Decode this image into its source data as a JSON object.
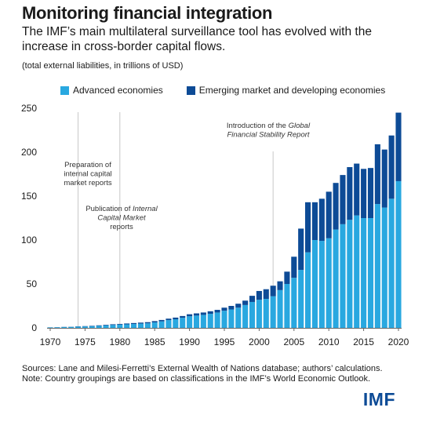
{
  "title": "Monitoring financial integration",
  "subtitle": "The IMF’s main multilateral surveillance tool has evolved with the increase in cross-border capital flows.",
  "units_note": "(total external liabilities, in trillions of USD)",
  "footer": {
    "sources": "Sources: Lane and Milesi-Ferretti’s External Wealth of Nations database; authors’ calculations.",
    "note": "Note: Country groupings are based on classifications in the IMF’s World Economic Outlook."
  },
  "logo_text": "IMF",
  "colors": {
    "advanced": "#29a8e0",
    "emerging": "#0d4b96",
    "grid": "#c8c8c8"
  },
  "chart_data": {
    "type": "bar",
    "stacked": true,
    "x": [
      1970,
      1971,
      1972,
      1973,
      1974,
      1975,
      1976,
      1977,
      1978,
      1979,
      1980,
      1981,
      1982,
      1983,
      1984,
      1985,
      1986,
      1987,
      1988,
      1989,
      1990,
      1991,
      1992,
      1993,
      1994,
      1995,
      1996,
      1997,
      1998,
      1999,
      2000,
      2001,
      2002,
      2003,
      2004,
      2005,
      2006,
      2007,
      2008,
      2009,
      2010,
      2011,
      2012,
      2013,
      2014,
      2015,
      2016,
      2017,
      2018,
      2019,
      2020
    ],
    "series": [
      {
        "name": "Advanced economies",
        "values": [
          0.5,
          0.7,
          0.9,
          1.1,
          1.4,
          1.6,
          1.9,
          2.3,
          2.8,
          3.3,
          3.7,
          4.0,
          4.4,
          4.8,
          5.2,
          6.2,
          7.4,
          8.8,
          9.8,
          11.5,
          13.2,
          14.0,
          14.8,
          16.0,
          17.5,
          19.5,
          21.0,
          23.0,
          26.0,
          29.5,
          32.0,
          33.0,
          36.0,
          43.0,
          50.0,
          57.0,
          66.0,
          86.0,
          100.0,
          99.0,
          102.0,
          112.0,
          118.0,
          123.0,
          128.0,
          125.0,
          125.0,
          141.0,
          137.0,
          147.0,
          167.0
        ]
      },
      {
        "name": "Emerging market and developing economies",
        "values": [
          0.1,
          0.1,
          0.2,
          0.2,
          0.3,
          0.4,
          0.5,
          0.6,
          0.7,
          0.8,
          0.8,
          1.0,
          1.1,
          1.2,
          1.3,
          1.5,
          1.6,
          1.7,
          1.9,
          2.0,
          2.3,
          2.5,
          2.7,
          2.9,
          3.0,
          3.5,
          4.0,
          4.5,
          5.0,
          7.0,
          10.0,
          11.0,
          12.0,
          10.0,
          14.0,
          24.0,
          47.0,
          57.0,
          43.0,
          48.0,
          53.0,
          53.0,
          56.0,
          60.0,
          59.0,
          56.0,
          57.0,
          68.0,
          66.0,
          72.0,
          78.0
        ]
      }
    ],
    "ylim": [
      0,
      250
    ],
    "yticks": [
      0,
      50,
      100,
      150,
      200,
      250
    ],
    "xticks": [
      1970,
      1975,
      1980,
      1985,
      1990,
      1995,
      2000,
      2005,
      2010,
      2015,
      2020
    ],
    "annotations": [
      {
        "x": 1974,
        "lines": [
          [
            {
              "t": "Preparation of",
              "i": false
            }
          ],
          [
            {
              "t": "internal capital",
              "i": false
            }
          ],
          [
            {
              "t": "market reports",
              "i": false
            }
          ]
        ]
      },
      {
        "x": 1980,
        "lines": [
          [
            {
              "t": "Publication of ",
              "i": false
            },
            {
              "t": "Internal",
              "i": true
            }
          ],
          [
            {
              "t": "Capital Market",
              "i": true
            }
          ],
          [
            {
              "t": "reports",
              "i": false
            }
          ]
        ]
      },
      {
        "x": 2002,
        "lines": [
          [
            {
              "t": "Introduction of the ",
              "i": false
            },
            {
              "t": "Global",
              "i": true
            }
          ],
          [
            {
              "t": "Financial Stability Report",
              "i": true
            }
          ]
        ]
      }
    ],
    "legend": [
      "Advanced economies",
      "Emerging market and developing economies"
    ],
    "legend_position": "top",
    "grid": false
  }
}
